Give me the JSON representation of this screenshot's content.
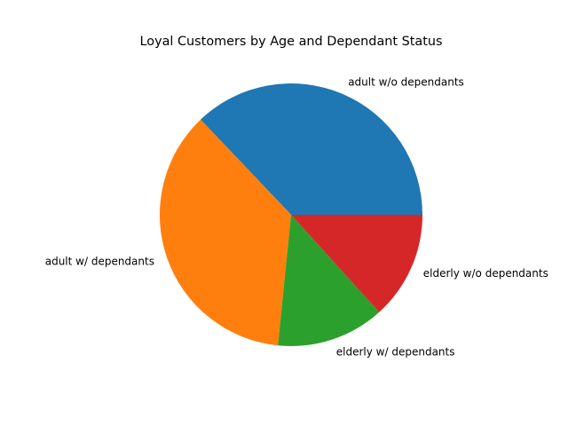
{
  "chart_data": {
    "type": "pie",
    "title": "Loyal Customers by Age and Dependant Status",
    "categories": [
      "adult w/o dependants",
      "adult w/ dependants",
      "elderly w/ dependants",
      "elderly w/o dependants"
    ],
    "values": [
      37.1,
      36.3,
      13.3,
      13.3
    ],
    "colors": [
      "#1f77b4",
      "#ff7f0e",
      "#2ca02c",
      "#d62728"
    ],
    "start_angle_deg": 0,
    "direction": "counterclockwise",
    "legend": "none"
  }
}
